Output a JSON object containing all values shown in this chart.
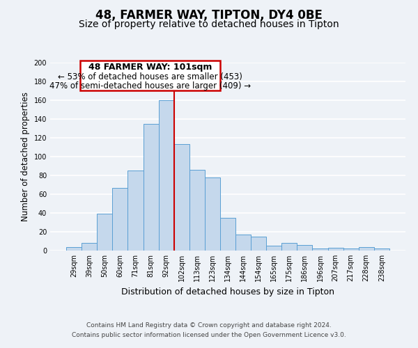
{
  "title": "48, FARMER WAY, TIPTON, DY4 0BE",
  "subtitle": "Size of property relative to detached houses in Tipton",
  "xlabel": "Distribution of detached houses by size in Tipton",
  "ylabel": "Number of detached properties",
  "categories": [
    "29sqm",
    "39sqm",
    "50sqm",
    "60sqm",
    "71sqm",
    "81sqm",
    "92sqm",
    "102sqm",
    "113sqm",
    "123sqm",
    "134sqm",
    "144sqm",
    "154sqm",
    "165sqm",
    "175sqm",
    "186sqm",
    "196sqm",
    "207sqm",
    "217sqm",
    "228sqm",
    "238sqm"
  ],
  "values": [
    4,
    8,
    39,
    67,
    85,
    135,
    160,
    113,
    86,
    78,
    35,
    17,
    15,
    5,
    8,
    6,
    2,
    3,
    2,
    4,
    2
  ],
  "bar_color": "#c5d8ec",
  "bar_edge_color": "#5a9fd4",
  "vline_color": "#cc0000",
  "vline_index": 7,
  "ylim": [
    0,
    200
  ],
  "yticks": [
    0,
    20,
    40,
    60,
    80,
    100,
    120,
    140,
    160,
    180,
    200
  ],
  "annotation_title": "48 FARMER WAY: 101sqm",
  "annotation_line1": "← 53% of detached houses are smaller (453)",
  "annotation_line2": "47% of semi-detached houses are larger (409) →",
  "annotation_box_ec": "#cc0000",
  "footer1": "Contains HM Land Registry data © Crown copyright and database right 2024.",
  "footer2": "Contains public sector information licensed under the Open Government Licence v3.0.",
  "bg_color": "#eef2f7",
  "grid_color": "#ffffff",
  "title_fontsize": 12,
  "subtitle_fontsize": 10,
  "ylabel_fontsize": 8.5,
  "xlabel_fontsize": 9,
  "tick_fontsize": 7,
  "footer_fontsize": 6.5,
  "annot_title_fontsize": 9,
  "annot_line_fontsize": 8.5
}
